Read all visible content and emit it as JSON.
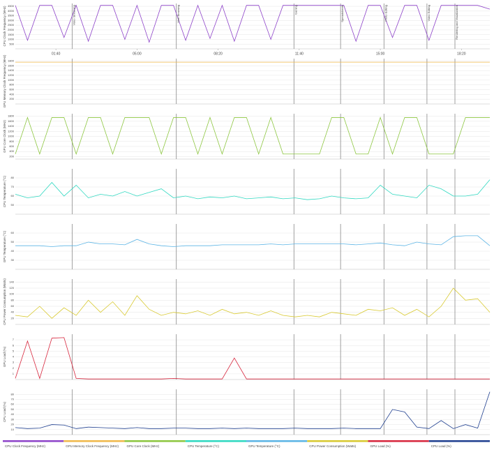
{
  "chart_data": [
    {
      "type": "line",
      "y_label": "CPU Clock Frequency (MHz)",
      "x": [
        0,
        30,
        60,
        90,
        120,
        150,
        180,
        210,
        240,
        270,
        300,
        330,
        360,
        390,
        420,
        450,
        480,
        510,
        540,
        570,
        600,
        630,
        660,
        690,
        720,
        750,
        780,
        810,
        840,
        870,
        900,
        930,
        960,
        990,
        1020,
        1050,
        1080,
        1110,
        1140,
        1170
      ],
      "xlim": [
        0,
        1170
      ],
      "xticks": [
        {
          "value": 100,
          "label": "01:40"
        },
        {
          "value": 300,
          "label": "05:00"
        },
        {
          "value": 500,
          "label": "08:20"
        },
        {
          "value": 700,
          "label": "11:40"
        },
        {
          "value": 900,
          "label": "15:00"
        },
        {
          "value": 1100,
          "label": "18:20"
        }
      ],
      "annotations": [
        {
          "x": 140,
          "label": "Video Streaming"
        },
        {
          "x": 397,
          "label": "Web Browsing"
        },
        {
          "x": 687,
          "label": "Gaming"
        },
        {
          "x": 802,
          "label": "Spreadsheets"
        },
        {
          "x": 909,
          "label": "Photo Editing"
        },
        {
          "x": 1015,
          "label": "Video Editing"
        },
        {
          "x": 1084,
          "label": "Rendering and Visualization"
        }
      ],
      "ylim": [
        0,
        4800
      ],
      "yticks": [
        500,
        1000,
        1500,
        2000,
        2500,
        3000,
        3500,
        4000,
        4500
      ],
      "grid": true,
      "series": [
        {
          "name": "CPU Clock Frequency (MHz)",
          "color": "#8e44c9",
          "values": [
            4600,
            900,
            4600,
            4600,
            1200,
            4600,
            800,
            4600,
            4600,
            1000,
            4600,
            700,
            4600,
            4600,
            900,
            4600,
            1100,
            4600,
            800,
            4600,
            4600,
            1000,
            4600,
            4600,
            4600,
            4600,
            4600,
            4600,
            800,
            4600,
            4600,
            1200,
            4600,
            4600,
            900,
            4600,
            4600,
            4600,
            4600,
            4200
          ]
        }
      ]
    },
    {
      "type": "line",
      "y_label": "GPU Memory Clock Frequency (MHz)",
      "ylim": [
        0,
        1900
      ],
      "yticks": [
        200,
        400,
        600,
        800,
        1000,
        1200,
        1400,
        1600,
        1800
      ],
      "grid": true,
      "series": [
        {
          "name": "GPU Memory Clock Frequency (MHz)",
          "color": "#f0b84a",
          "values": [
            1750,
            1750,
            1750,
            1750,
            1750,
            1750,
            1750,
            1750,
            1750,
            1750,
            1750,
            1750,
            1750,
            1750,
            1750,
            1750,
            1750,
            1750,
            1750,
            1750,
            1750,
            1750,
            1750,
            1750,
            1750,
            1750,
            1750,
            1750,
            1750,
            1750,
            1750,
            1750,
            1750,
            1750,
            1750,
            1750,
            1750,
            1750,
            1750,
            1750
          ]
        }
      ]
    },
    {
      "type": "line",
      "y_label": "GPU Core Clock (MHz)",
      "ylim": [
        100,
        1900
      ],
      "yticks": [
        200,
        400,
        600,
        800,
        1000,
        1200,
        1400,
        1600,
        1800
      ],
      "grid": true,
      "series": [
        {
          "name": "GPU Core Clock (MHz)",
          "color": "#8cc63f",
          "values": [
            300,
            1750,
            300,
            1750,
            1750,
            300,
            1750,
            1750,
            300,
            1750,
            1750,
            1750,
            300,
            1750,
            1750,
            300,
            1750,
            300,
            1750,
            1750,
            300,
            1750,
            300,
            300,
            300,
            300,
            1750,
            1750,
            300,
            300,
            1750,
            300,
            1750,
            1750,
            300,
            300,
            300,
            1750,
            1750,
            1750
          ]
        }
      ]
    },
    {
      "type": "line",
      "y_label": "CPU Temperature (°C)",
      "ylim": [
        40,
        90
      ],
      "yticks": [
        50,
        60,
        70,
        80
      ],
      "grid": true,
      "series": [
        {
          "name": "CPU Temperature (°C)",
          "color": "#2ed8c0",
          "values": [
            62,
            58,
            60,
            75,
            60,
            72,
            58,
            62,
            60,
            65,
            60,
            64,
            68,
            58,
            60,
            57,
            59,
            58,
            60,
            57,
            58,
            59,
            57,
            58,
            56,
            57,
            60,
            58,
            57,
            58,
            72,
            62,
            60,
            58,
            72,
            68,
            60,
            60,
            62,
            78
          ]
        }
      ]
    },
    {
      "type": "line",
      "y_label": "GPU Temperature (°C)",
      "ylim": [
        20,
        70
      ],
      "yticks": [
        30,
        40,
        50,
        60
      ],
      "grid": true,
      "series": [
        {
          "name": "GPU Temperature (°C)",
          "color": "#5bb4e5",
          "values": [
            46,
            46,
            46,
            45,
            46,
            46,
            50,
            48,
            48,
            47,
            53,
            48,
            46,
            45,
            46,
            46,
            46,
            47,
            47,
            47,
            47,
            48,
            47,
            48,
            48,
            48,
            48,
            48,
            47,
            48,
            49,
            47,
            46,
            50,
            48,
            47,
            56,
            57,
            57,
            46
          ]
        }
      ]
    },
    {
      "type": "line",
      "y_label": "CPU Power Consumption (Watts)",
      "ylim": [
        0,
        150
      ],
      "yticks": [
        20,
        40,
        60,
        80,
        100,
        120,
        140
      ],
      "grid": true,
      "series": [
        {
          "name": "CPU Power Consumption (Watts)",
          "color": "#d8c930",
          "values": [
            30,
            25,
            60,
            20,
            55,
            30,
            80,
            40,
            75,
            30,
            95,
            50,
            30,
            40,
            35,
            45,
            30,
            50,
            35,
            40,
            30,
            45,
            30,
            25,
            30,
            25,
            40,
            35,
            30,
            50,
            45,
            55,
            30,
            50,
            25,
            60,
            120,
            80,
            85,
            40
          ]
        }
      ]
    },
    {
      "type": "line",
      "y_label": "GPU Load (%)",
      "ylim": [
        0,
        8
      ],
      "yticks": [
        1,
        2,
        3,
        4,
        5,
        6,
        7
      ],
      "grid": true,
      "series": [
        {
          "name": "GPU Load (%)",
          "color": "#d7263d",
          "values": [
            0.2,
            6.8,
            0.2,
            7.3,
            7.4,
            0.2,
            0.1,
            0.1,
            0.1,
            0.1,
            0.1,
            0.1,
            0.1,
            0.2,
            0.1,
            0.1,
            0.1,
            0.1,
            3.8,
            0.1,
            0.1,
            0.1,
            0.1,
            0.1,
            0.1,
            0.1,
            0.1,
            0.1,
            0.1,
            0.1,
            0.1,
            0.1,
            0.1,
            0.1,
            0.1,
            0.1,
            0.1,
            0.1,
            0.1,
            0.1
          ]
        }
      ]
    },
    {
      "type": "line",
      "y_label": "CPU Load (%)",
      "ylim": [
        0,
        90
      ],
      "yticks": [
        10,
        20,
        30,
        40,
        50,
        60,
        70,
        80
      ],
      "grid": true,
      "series": [
        {
          "name": "CPU Load (%)",
          "color": "#1f3f8f",
          "values": [
            14,
            12,
            13,
            20,
            19,
            12,
            15,
            14,
            13,
            12,
            14,
            12,
            12,
            13,
            13,
            12,
            12,
            13,
            12,
            13,
            12,
            12,
            12,
            13,
            12,
            12,
            12,
            13,
            12,
            12,
            12,
            50,
            45,
            15,
            12,
            28,
            12,
            20,
            13,
            85
          ]
        }
      ]
    }
  ]
}
